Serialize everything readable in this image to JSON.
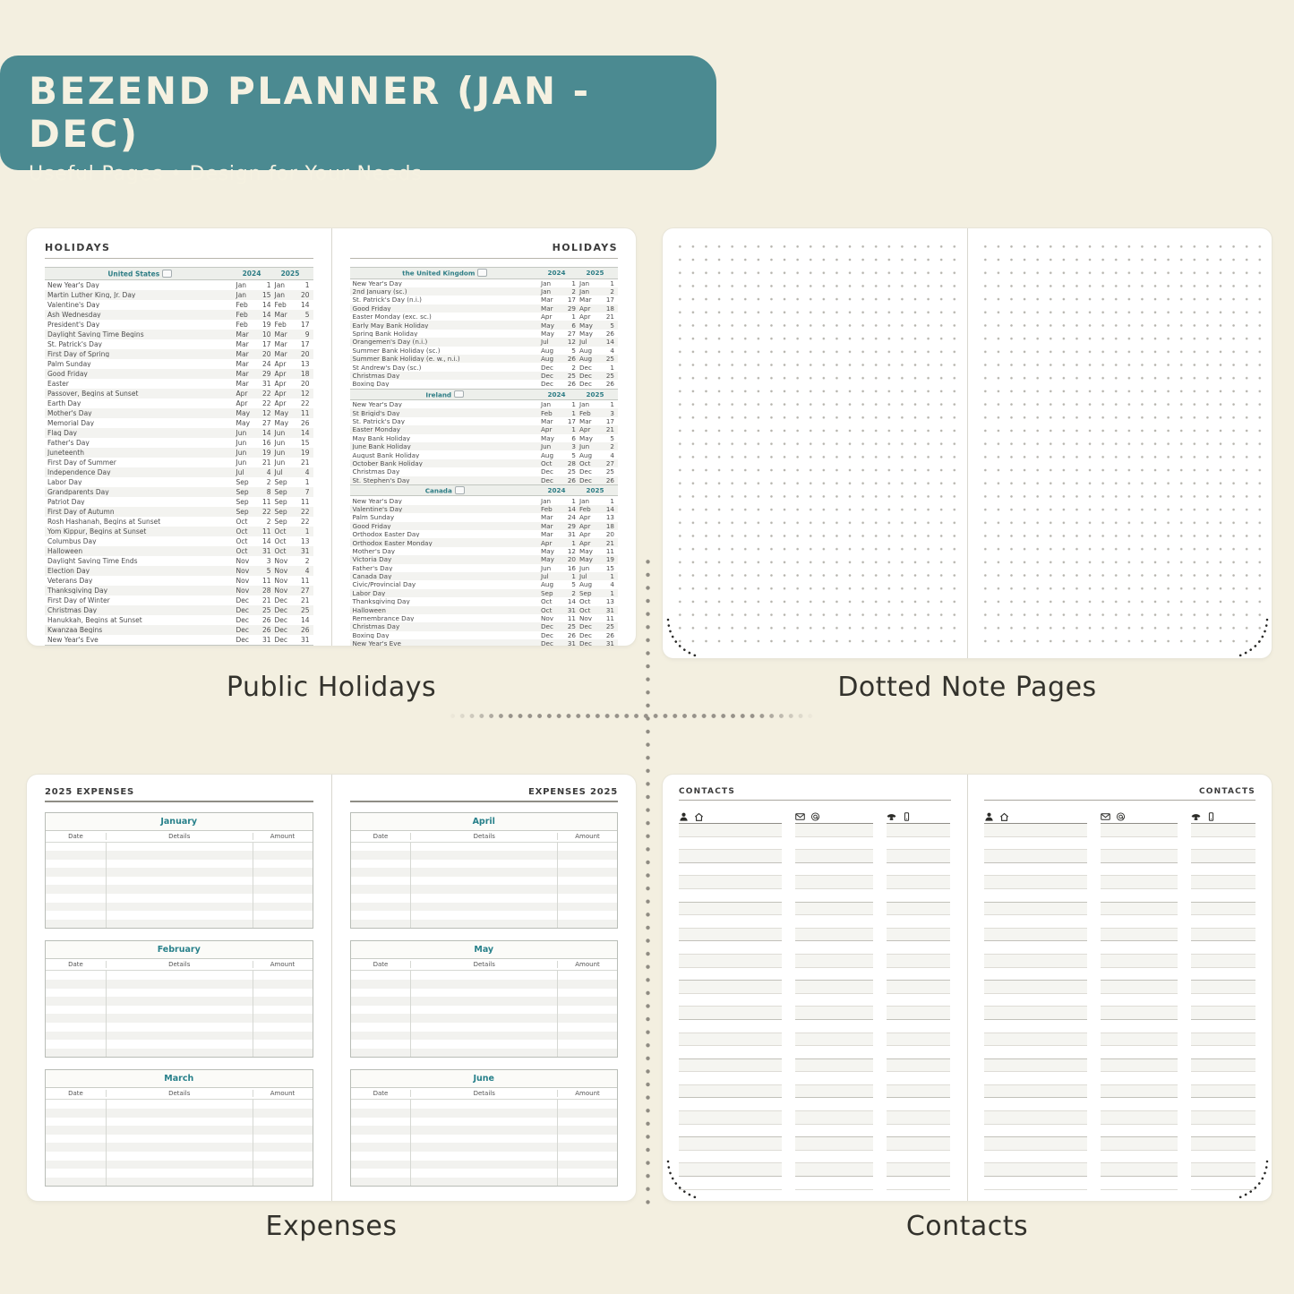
{
  "banner": {
    "title": "BEZEND PLANNER (JAN - DEC)",
    "subtitle": "Useful Pages  •  Design for Your Needs"
  },
  "captions": {
    "holidays": "Public Holidays",
    "dotted": "Dotted Note Pages",
    "expenses": "Expenses",
    "contacts": "Contacts"
  },
  "colors": {
    "banner_teal": "#4b8a91",
    "page_cream": "#f3efe0",
    "accent_teal": "#2e7d85",
    "paper_white": "#ffffff"
  },
  "holidays": {
    "page_title": "HOLIDAYS",
    "year_cols": [
      "2024",
      "2025"
    ],
    "tables": [
      {
        "country": "United States",
        "page": "left",
        "rows": [
          [
            "New Year's Day",
            "Jan",
            "1",
            "Jan",
            "1"
          ],
          [
            "Martin Luther King, Jr. Day",
            "Jan",
            "15",
            "Jan",
            "20"
          ],
          [
            "Valentine's Day",
            "Feb",
            "14",
            "Feb",
            "14"
          ],
          [
            "Ash Wednesday",
            "Feb",
            "14",
            "Mar",
            "5"
          ],
          [
            "President's Day",
            "Feb",
            "19",
            "Feb",
            "17"
          ],
          [
            "Daylight Saving Time Begins",
            "Mar",
            "10",
            "Mar",
            "9"
          ],
          [
            "St. Patrick's Day",
            "Mar",
            "17",
            "Mar",
            "17"
          ],
          [
            "First Day of Spring",
            "Mar",
            "20",
            "Mar",
            "20"
          ],
          [
            "Palm Sunday",
            "Mar",
            "24",
            "Apr",
            "13"
          ],
          [
            "Good Friday",
            "Mar",
            "29",
            "Apr",
            "18"
          ],
          [
            "Easter",
            "Mar",
            "31",
            "Apr",
            "20"
          ],
          [
            "Passover, Begins at Sunset",
            "Apr",
            "22",
            "Apr",
            "12"
          ],
          [
            "Earth Day",
            "Apr",
            "22",
            "Apr",
            "22"
          ],
          [
            "Mother's Day",
            "May",
            "12",
            "May",
            "11"
          ],
          [
            "Memorial Day",
            "May",
            "27",
            "May",
            "26"
          ],
          [
            "Flag Day",
            "Jun",
            "14",
            "Jun",
            "14"
          ],
          [
            "Father's Day",
            "Jun",
            "16",
            "Jun",
            "15"
          ],
          [
            "Juneteenth",
            "Jun",
            "19",
            "Jun",
            "19"
          ],
          [
            "First Day of Summer",
            "Jun",
            "21",
            "Jun",
            "21"
          ],
          [
            "Independence Day",
            "Jul",
            "4",
            "Jul",
            "4"
          ],
          [
            "Labor Day",
            "Sep",
            "2",
            "Sep",
            "1"
          ],
          [
            "Grandparents Day",
            "Sep",
            "8",
            "Sep",
            "7"
          ],
          [
            "Patriot Day",
            "Sep",
            "11",
            "Sep",
            "11"
          ],
          [
            "First Day of Autumn",
            "Sep",
            "22",
            "Sep",
            "22"
          ],
          [
            "Rosh Hashanah, Begins at Sunset",
            "Oct",
            "2",
            "Sep",
            "22"
          ],
          [
            "Yom Kippur, Begins at Sunset",
            "Oct",
            "11",
            "Oct",
            "1"
          ],
          [
            "Columbus Day",
            "Oct",
            "14",
            "Oct",
            "13"
          ],
          [
            "Halloween",
            "Oct",
            "31",
            "Oct",
            "31"
          ],
          [
            "Daylight Saving Time Ends",
            "Nov",
            "3",
            "Nov",
            "2"
          ],
          [
            "Election Day",
            "Nov",
            "5",
            "Nov",
            "4"
          ],
          [
            "Veterans Day",
            "Nov",
            "11",
            "Nov",
            "11"
          ],
          [
            "Thanksgiving Day",
            "Nov",
            "28",
            "Nov",
            "27"
          ],
          [
            "First Day of Winter",
            "Dec",
            "21",
            "Dec",
            "21"
          ],
          [
            "Christmas Day",
            "Dec",
            "25",
            "Dec",
            "25"
          ],
          [
            "Hanukkah, Begins at Sunset",
            "Dec",
            "26",
            "Dec",
            "14"
          ],
          [
            "Kwanzaa Begins",
            "Dec",
            "26",
            "Dec",
            "26"
          ],
          [
            "New Year's Eve",
            "Dec",
            "31",
            "Dec",
            "31"
          ]
        ]
      },
      {
        "country": "the United Kingdom",
        "page": "right",
        "rows": [
          [
            "New Year's Day",
            "Jan",
            "1",
            "Jan",
            "1"
          ],
          [
            "2nd January (sc.)",
            "Jan",
            "2",
            "Jan",
            "2"
          ],
          [
            "St. Patrick's Day (n.i.)",
            "Mar",
            "17",
            "Mar",
            "17"
          ],
          [
            "Good Friday",
            "Mar",
            "29",
            "Apr",
            "18"
          ],
          [
            "Easter Monday (exc. sc.)",
            "Apr",
            "1",
            "Apr",
            "21"
          ],
          [
            "Early May Bank Holiday",
            "May",
            "6",
            "May",
            "5"
          ],
          [
            "Spring Bank Holiday",
            "May",
            "27",
            "May",
            "26"
          ],
          [
            "Orangemen's Day (n.i.)",
            "Jul",
            "12",
            "Jul",
            "14"
          ],
          [
            "Summer Bank Holiday (sc.)",
            "Aug",
            "5",
            "Aug",
            "4"
          ],
          [
            "Summer Bank Holiday (e. w., n.i.)",
            "Aug",
            "26",
            "Aug",
            "25"
          ],
          [
            "St Andrew's Day (sc.)",
            "Dec",
            "2",
            "Dec",
            "1"
          ],
          [
            "Christmas Day",
            "Dec",
            "25",
            "Dec",
            "25"
          ],
          [
            "Boxing Day",
            "Dec",
            "26",
            "Dec",
            "26"
          ]
        ]
      },
      {
        "country": "Ireland",
        "page": "right",
        "rows": [
          [
            "New Year's Day",
            "Jan",
            "1",
            "Jan",
            "1"
          ],
          [
            "St Brigid's Day",
            "Feb",
            "1",
            "Feb",
            "3"
          ],
          [
            "St. Patrick's Day",
            "Mar",
            "17",
            "Mar",
            "17"
          ],
          [
            "Easter Monday",
            "Apr",
            "1",
            "Apr",
            "21"
          ],
          [
            "May Bank Holiday",
            "May",
            "6",
            "May",
            "5"
          ],
          [
            "June Bank Holiday",
            "Jun",
            "3",
            "Jun",
            "2"
          ],
          [
            "August Bank Holiday",
            "Aug",
            "5",
            "Aug",
            "4"
          ],
          [
            "October Bank Holiday",
            "Oct",
            "28",
            "Oct",
            "27"
          ],
          [
            "Christmas Day",
            "Dec",
            "25",
            "Dec",
            "25"
          ],
          [
            "St. Stephen's Day",
            "Dec",
            "26",
            "Dec",
            "26"
          ]
        ]
      },
      {
        "country": "Canada",
        "page": "right",
        "rows": [
          [
            "New Year's Day",
            "Jan",
            "1",
            "Jan",
            "1"
          ],
          [
            "Valentine's Day",
            "Feb",
            "14",
            "Feb",
            "14"
          ],
          [
            "Palm Sunday",
            "Mar",
            "24",
            "Apr",
            "13"
          ],
          [
            "Good Friday",
            "Mar",
            "29",
            "Apr",
            "18"
          ],
          [
            "Orthodox Easter Day",
            "Mar",
            "31",
            "Apr",
            "20"
          ],
          [
            "Orthodox Easter Monday",
            "Apr",
            "1",
            "Apr",
            "21"
          ],
          [
            "Mother's Day",
            "May",
            "12",
            "May",
            "11"
          ],
          [
            "Victoria Day",
            "May",
            "20",
            "May",
            "19"
          ],
          [
            "Father's Day",
            "Jun",
            "16",
            "Jun",
            "15"
          ],
          [
            "Canada Day",
            "Jul",
            "1",
            "Jul",
            "1"
          ],
          [
            "Civic/Provincial Day",
            "Aug",
            "5",
            "Aug",
            "4"
          ],
          [
            "Labor Day",
            "Sep",
            "2",
            "Sep",
            "1"
          ],
          [
            "Thanksgiving Day",
            "Oct",
            "14",
            "Oct",
            "13"
          ],
          [
            "Halloween",
            "Oct",
            "31",
            "Oct",
            "31"
          ],
          [
            "Remembrance Day",
            "Nov",
            "11",
            "Nov",
            "11"
          ],
          [
            "Christmas Day",
            "Dec",
            "25",
            "Dec",
            "25"
          ],
          [
            "Boxing Day",
            "Dec",
            "26",
            "Dec",
            "26"
          ],
          [
            "New Year's Eve",
            "Dec",
            "31",
            "Dec",
            "31"
          ]
        ]
      }
    ]
  },
  "expenses": {
    "left_title": "2025 EXPENSES",
    "right_title": "EXPENSES 2025",
    "columns": [
      "Date",
      "Details",
      "Amount"
    ],
    "left_months": [
      "January",
      "February",
      "March"
    ],
    "right_months": [
      "April",
      "May",
      "June"
    ],
    "rows_per_table": 10
  },
  "contacts": {
    "page_title": "CONTACTS",
    "column_icons": [
      [
        "person-icon",
        "home-icon"
      ],
      [
        "mail-icon",
        "at-icon"
      ],
      [
        "phone-icon",
        "mobile-icon"
      ]
    ],
    "lines_per_column": 28
  }
}
